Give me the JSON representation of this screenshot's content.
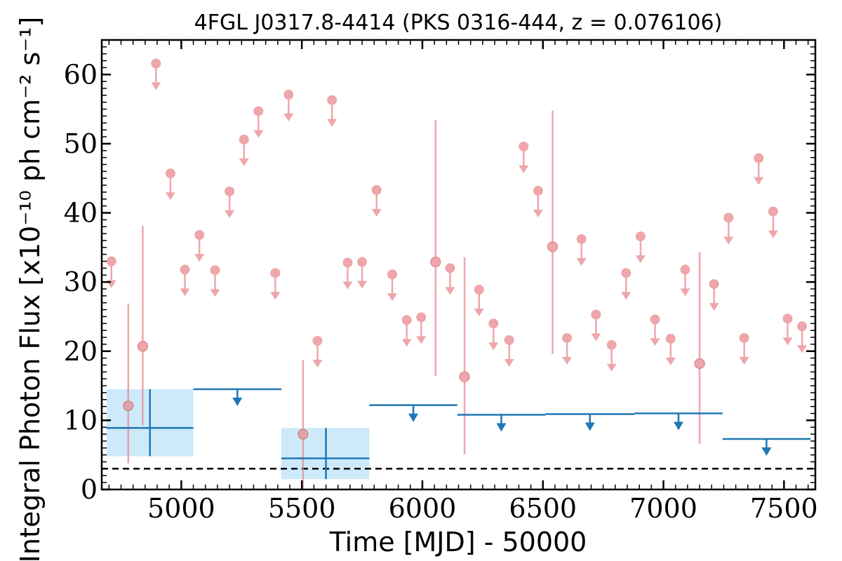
{
  "chart_data": {
    "type": "scatter",
    "title": "4FGL J0317.8-4414 (PKS 0316-444, z = 0.076106)",
    "xlabel": "Time [MJD] - 50000",
    "ylabel": "Integral Photon Flux [x10⁻¹⁰ ph cm⁻² s⁻¹]",
    "xlim": [
      4670,
      7630
    ],
    "ylim": [
      0,
      65
    ],
    "x_ticks": [
      5000,
      5500,
      6000,
      6500,
      7000,
      7500
    ],
    "y_ticks": [
      0,
      10,
      20,
      30,
      40,
      50,
      60
    ],
    "grid": false,
    "reference_line": {
      "y": 3.0,
      "style": "dashed"
    },
    "series": [
      {
        "marker": "circle",
        "color": "#e8858a",
        "upper_limits": [
          [
            4710,
            33.0
          ],
          [
            4895,
            61.6
          ],
          [
            4955,
            45.7
          ],
          [
            5015,
            31.8
          ],
          [
            5075,
            36.8
          ],
          [
            5140,
            31.7
          ],
          [
            5200,
            43.1
          ],
          [
            5260,
            50.6
          ],
          [
            5320,
            54.7
          ],
          [
            5390,
            31.3
          ],
          [
            5445,
            57.1
          ],
          [
            5565,
            21.5
          ],
          [
            5625,
            56.3
          ],
          [
            5690,
            32.8
          ],
          [
            5750,
            32.9
          ],
          [
            5810,
            43.3
          ],
          [
            5875,
            31.1
          ],
          [
            5935,
            24.5
          ],
          [
            5995,
            24.9
          ],
          [
            6115,
            32.0
          ],
          [
            6235,
            28.9
          ],
          [
            6295,
            24.0
          ],
          [
            6360,
            21.6
          ],
          [
            6420,
            49.6
          ],
          [
            6480,
            43.2
          ],
          [
            6600,
            21.9
          ],
          [
            6660,
            36.2
          ],
          [
            6720,
            25.3
          ],
          [
            6785,
            20.9
          ],
          [
            6845,
            31.3
          ],
          [
            6905,
            36.6
          ],
          [
            6965,
            24.6
          ],
          [
            7030,
            21.8
          ],
          [
            7090,
            31.8
          ],
          [
            7210,
            29.7
          ],
          [
            7270,
            39.3
          ],
          [
            7335,
            21.9
          ],
          [
            7395,
            47.9
          ],
          [
            7455,
            40.2
          ],
          [
            7515,
            24.7
          ],
          [
            7575,
            23.6
          ]
        ],
        "detections": [
          {
            "x": 4780,
            "y": 12.1,
            "yerr_low": 3.8,
            "yerr_high": 26.9
          },
          {
            "x": 4840,
            "y": 20.7,
            "yerr_low": 9.3,
            "yerr_high": 38.1
          },
          {
            "x": 5505,
            "y": 8.0,
            "yerr_low": 0.0,
            "yerr_high": 18.7
          },
          {
            "x": 6055,
            "y": 32.9,
            "yerr_low": 16.4,
            "yerr_high": 53.4
          },
          {
            "x": 6175,
            "y": 16.3,
            "yerr_low": 5.1,
            "yerr_high": 33.6
          },
          {
            "x": 6540,
            "y": 35.1,
            "yerr_low": 19.6,
            "yerr_high": 54.8
          },
          {
            "x": 7150,
            "y": 18.2,
            "yerr_low": 6.6,
            "yerr_high": 34.3
          }
        ]
      },
      {
        "marker": "bin",
        "color": "#1f77b4",
        "box_color": "#cdeafa",
        "detections": [
          {
            "x0": 4690,
            "x1": 5050,
            "xc": 4870,
            "y": 8.9,
            "ylow": 4.8,
            "yhigh": 14.5
          },
          {
            "x0": 5415,
            "x1": 5780,
            "xc": 5600,
            "y": 4.5,
            "ylow": 1.5,
            "yhigh": 8.9
          }
        ],
        "upper_limits": [
          {
            "x0": 5050,
            "x1": 5415,
            "y": 14.5
          },
          {
            "x0": 5780,
            "x1": 6145,
            "y": 12.2
          },
          {
            "x0": 6145,
            "x1": 6510,
            "y": 10.8
          },
          {
            "x0": 6510,
            "x1": 6880,
            "y": 10.9
          },
          {
            "x0": 6880,
            "x1": 7245,
            "y": 11.0
          },
          {
            "x0": 7245,
            "x1": 7610,
            "y": 7.3
          }
        ]
      }
    ]
  }
}
